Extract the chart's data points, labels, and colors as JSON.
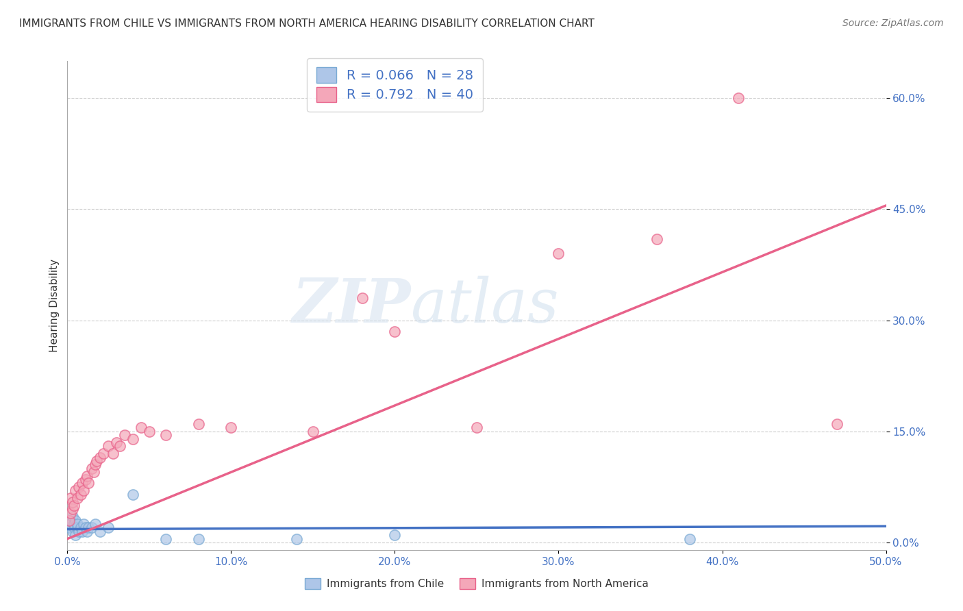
{
  "title": "IMMIGRANTS FROM CHILE VS IMMIGRANTS FROM NORTH AMERICA HEARING DISABILITY CORRELATION CHART",
  "source": "Source: ZipAtlas.com",
  "ylabel_label": "Hearing Disability",
  "xlim": [
    0.0,
    0.5
  ],
  "ylim": [
    -0.01,
    0.65
  ],
  "chile_color": "#aec6e8",
  "chile_edge_color": "#7aaad4",
  "na_color": "#f4a7b9",
  "na_edge_color": "#e8628a",
  "chile_line_color": "#4472c4",
  "na_line_color": "#e8628a",
  "chile_R": 0.066,
  "chile_N": 28,
  "na_R": 0.792,
  "na_N": 40,
  "watermark_zip": "ZIP",
  "watermark_atlas": "atlas",
  "grid_color": "#cccccc",
  "chile_points_x": [
    0.001,
    0.002,
    0.002,
    0.003,
    0.003,
    0.004,
    0.004,
    0.005,
    0.005,
    0.006,
    0.006,
    0.007,
    0.008,
    0.009,
    0.01,
    0.011,
    0.012,
    0.013,
    0.015,
    0.017,
    0.02,
    0.025,
    0.04,
    0.06,
    0.08,
    0.14,
    0.2,
    0.38
  ],
  "chile_points_y": [
    0.02,
    0.025,
    0.03,
    0.015,
    0.035,
    0.02,
    0.025,
    0.01,
    0.03,
    0.02,
    0.025,
    0.015,
    0.02,
    0.015,
    0.025,
    0.02,
    0.015,
    0.02,
    0.02,
    0.025,
    0.015,
    0.02,
    0.065,
    0.005,
    0.005,
    0.005,
    0.01,
    0.005
  ],
  "na_points_x": [
    0.001,
    0.002,
    0.002,
    0.003,
    0.003,
    0.004,
    0.005,
    0.006,
    0.007,
    0.008,
    0.009,
    0.01,
    0.011,
    0.012,
    0.013,
    0.015,
    0.016,
    0.017,
    0.018,
    0.02,
    0.022,
    0.025,
    0.028,
    0.03,
    0.032,
    0.035,
    0.04,
    0.045,
    0.05,
    0.06,
    0.08,
    0.1,
    0.15,
    0.18,
    0.2,
    0.25,
    0.3,
    0.36,
    0.41,
    0.47
  ],
  "na_points_y": [
    0.03,
    0.04,
    0.06,
    0.045,
    0.055,
    0.05,
    0.07,
    0.06,
    0.075,
    0.065,
    0.08,
    0.07,
    0.085,
    0.09,
    0.08,
    0.1,
    0.095,
    0.105,
    0.11,
    0.115,
    0.12,
    0.13,
    0.12,
    0.135,
    0.13,
    0.145,
    0.14,
    0.155,
    0.15,
    0.145,
    0.16,
    0.155,
    0.15,
    0.33,
    0.285,
    0.155,
    0.39,
    0.41,
    0.6,
    0.16
  ],
  "title_fontsize": 11,
  "source_fontsize": 10,
  "axis_label_fontsize": 11,
  "tick_fontsize": 11,
  "legend_fontsize": 14
}
